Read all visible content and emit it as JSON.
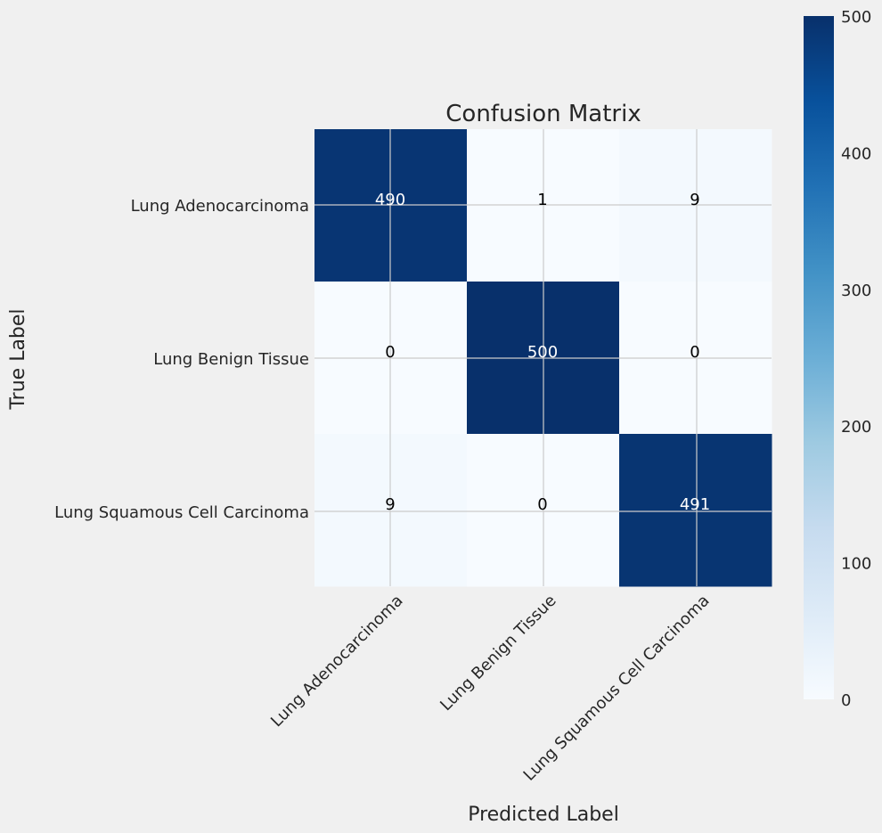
{
  "chart_data": {
    "type": "heatmap",
    "title": "Confusion Matrix",
    "xlabel": "Predicted Label",
    "ylabel": "True Label",
    "rows": [
      "Lung Adenocarcinoma",
      "Lung Benign Tissue",
      "Lung Squamous Cell Carcinoma"
    ],
    "columns": [
      "Lung Adenocarcinoma",
      "Lung Benign Tissue",
      "Lung Squamous Cell Carcinoma"
    ],
    "matrix": [
      [
        490,
        1,
        9
      ],
      [
        0,
        500,
        0
      ],
      [
        9,
        0,
        491
      ]
    ],
    "colormap": "Blues",
    "colorbar": {
      "min": 0,
      "max": 500,
      "ticks": [
        0,
        100,
        200,
        300,
        400,
        500
      ]
    },
    "grid": true
  },
  "colors": {
    "background": "#f0f0f0",
    "text": "#262626",
    "grid": "#cbcbcb"
  }
}
